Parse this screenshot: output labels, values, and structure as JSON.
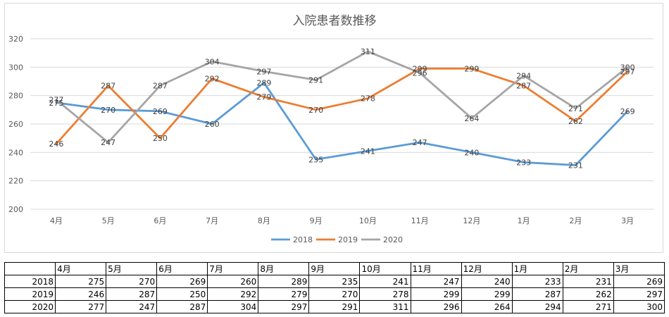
{
  "chart_data": {
    "type": "line",
    "title": "入院患者数推移",
    "categories": [
      "4月",
      "5月",
      "6月",
      "7月",
      "8月",
      "9月",
      "10月",
      "11月",
      "12月",
      "1月",
      "2月",
      "3月"
    ],
    "ylim": [
      200,
      320
    ],
    "yticks": [
      200,
      220,
      240,
      260,
      280,
      300,
      320
    ],
    "grid": true,
    "legend_position": "bottom",
    "series": [
      {
        "name": "2018",
        "color": "#5b9bd5",
        "values": [
          275,
          270,
          269,
          260,
          289,
          235,
          241,
          247,
          240,
          233,
          231,
          269
        ]
      },
      {
        "name": "2019",
        "color": "#ed7d31",
        "values": [
          246,
          287,
          250,
          292,
          279,
          270,
          278,
          299,
          299,
          287,
          262,
          297
        ]
      },
      {
        "name": "2020",
        "color": "#a5a5a5",
        "values": [
          277,
          247,
          287,
          304,
          297,
          291,
          311,
          296,
          264,
          294,
          271,
          300
        ]
      }
    ]
  },
  "table": {
    "headers": [
      "",
      "4月",
      "5月",
      "6月",
      "7月",
      "8月",
      "9月",
      "10月",
      "11月",
      "12月",
      "1月",
      "2月",
      "3月"
    ],
    "rows": [
      {
        "label": "2018",
        "cells": [
          "275",
          "270",
          "269",
          "260",
          "289",
          "235",
          "241",
          "247",
          "240",
          "233",
          "231",
          "269"
        ]
      },
      {
        "label": "2019",
        "cells": [
          "246",
          "287",
          "250",
          "292",
          "279",
          "270",
          "278",
          "299",
          "299",
          "287",
          "262",
          "297"
        ]
      },
      {
        "label": "2020",
        "cells": [
          "277",
          "247",
          "287",
          "304",
          "297",
          "291",
          "311",
          "296",
          "264",
          "294",
          "271",
          "300"
        ]
      }
    ]
  }
}
